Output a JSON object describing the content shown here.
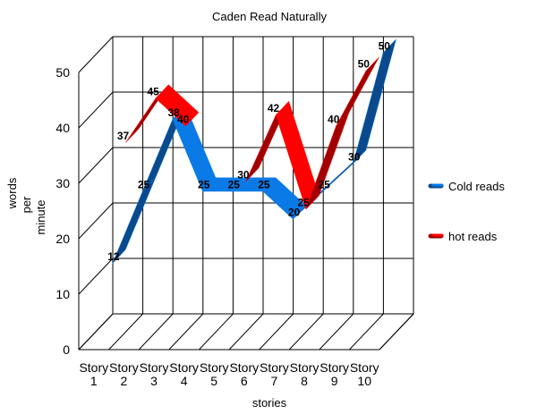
{
  "chart_data": {
    "type": "line",
    "title": "Caden Read Naturally",
    "xlabel": "stories",
    "ylabel": [
      "words",
      "per",
      "minute"
    ],
    "categories": [
      [
        "Story",
        "1"
      ],
      [
        "Story",
        "2"
      ],
      [
        "Story",
        "3"
      ],
      [
        "Story",
        "4"
      ],
      [
        "Story",
        "5"
      ],
      [
        "Story",
        "6"
      ],
      [
        "Story",
        "7"
      ],
      [
        "Story",
        "8"
      ],
      [
        "Story",
        "9"
      ],
      [
        "Story",
        "10"
      ]
    ],
    "ylim": [
      0,
      50
    ],
    "yticks": [
      "0",
      "10",
      "20",
      "30",
      "40",
      "50"
    ],
    "grid": true,
    "three_d": true,
    "legend_position": "right",
    "series": [
      {
        "name": "Cold reads",
        "color": "#0a7ae6",
        "dark_color": "#0a4a8c",
        "values": [
          12,
          25,
          38,
          25,
          25,
          25,
          20,
          25,
          30,
          50
        ],
        "labels": [
          "12",
          "25",
          "38",
          "25",
          "25",
          "25",
          "20",
          "25",
          "30",
          "50"
        ]
      },
      {
        "name": "hot reads",
        "color": "#ff0000",
        "dark_color": "#a00000",
        "values": [
          null,
          37,
          45,
          40,
          null,
          30,
          42,
          25,
          40,
          50
        ],
        "labels": [
          null,
          "37",
          "45",
          "40",
          null,
          "30",
          "42",
          "25",
          "40",
          "50"
        ]
      }
    ]
  }
}
